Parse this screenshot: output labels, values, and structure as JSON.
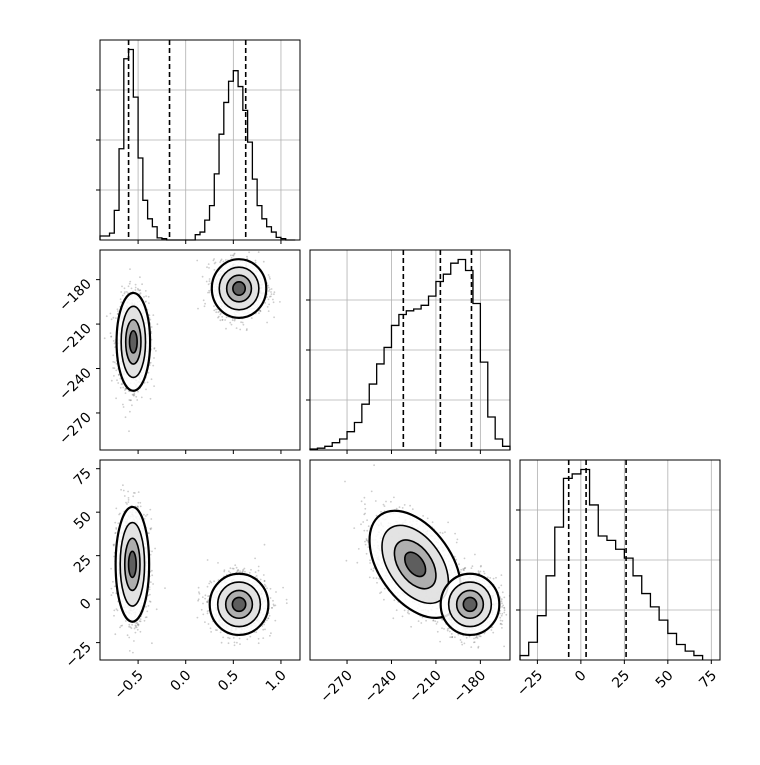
{
  "chart_data": {
    "type": "corner",
    "title": "",
    "parameters": [
      "",
      "",
      ""
    ],
    "colors": {
      "line": "#000000",
      "grid": "#b0b0b0",
      "scatter": "#6e6e6e"
    },
    "grid": true,
    "quantiles": [
      [
        -0.6,
        -0.17,
        0.63
      ],
      [
        -232,
        -207,
        -186
      ],
      [
        -7,
        3,
        26
      ]
    ],
    "histograms": [
      {
        "range": [
          -0.9,
          1.2
        ],
        "ticks": [
          -0.5,
          0.0,
          0.5,
          1.0
        ],
        "tick_labels": [
          "−0.5",
          "0.0",
          "0.5",
          "1.0"
        ],
        "edges": [
          -0.9,
          -0.8,
          -0.75,
          -0.7,
          -0.65,
          -0.6,
          -0.55,
          -0.5,
          -0.45,
          -0.4,
          -0.35,
          -0.3,
          -0.25,
          -0.2,
          -0.15,
          -0.1,
          -0.05,
          0.0,
          0.05,
          0.1,
          0.15,
          0.2,
          0.25,
          0.3,
          0.35,
          0.4,
          0.45,
          0.5,
          0.55,
          0.6,
          0.65,
          0.7,
          0.75,
          0.8,
          0.85,
          0.9,
          0.95,
          1.0,
          1.05,
          1.1,
          1.15
        ],
        "counts": [
          1.5,
          2.6,
          11.2,
          34.5,
          68.5,
          72.0,
          54.0,
          31.0,
          15.0,
          8.0,
          5.0,
          0.8,
          0.5,
          0.0,
          0.0,
          0.0,
          0.0,
          0.0,
          0.0,
          2.0,
          3.0,
          7.5,
          13.0,
          25.0,
          40.0,
          52.0,
          60.0,
          64.0,
          58.0,
          49.0,
          37.0,
          23.0,
          13.0,
          8.0,
          5.0,
          3.0,
          1.0,
          0.5,
          0.0,
          0.0
        ]
      },
      {
        "range": [
          -295,
          -160
        ],
        "ticks": [
          -270,
          -240,
          -210,
          -180
        ],
        "tick_labels": [
          "−270",
          "−240",
          "−210",
          "−180"
        ],
        "edges": [
          -295,
          -290,
          -285,
          -280,
          -275,
          -270,
          -265,
          -260,
          -255,
          -250,
          -245,
          -240,
          -235,
          -230,
          -225,
          -220,
          -215,
          -210,
          -205,
          -200,
          -195,
          -190,
          -185,
          -180,
          -175,
          -170,
          -165,
          -160
        ],
        "counts": [
          0.5,
          1.0,
          2.0,
          4.0,
          6.0,
          10.0,
          15.0,
          25.0,
          36.0,
          47.0,
          56.0,
          68.0,
          74.0,
          76.0,
          77.0,
          79.0,
          84.0,
          92.0,
          96.0,
          102.0,
          104.0,
          98.0,
          80.0,
          48.0,
          18.0,
          6.0,
          2.0
        ]
      },
      {
        "range": [
          -35,
          80
        ],
        "ticks": [
          -25,
          0,
          25,
          50,
          75
        ],
        "tick_labels": [
          "−25",
          "0",
          "25",
          "50",
          "75"
        ],
        "edges": [
          -35,
          -30,
          -25,
          -20,
          -15,
          -10,
          -5,
          0,
          5,
          10,
          15,
          20,
          25,
          30,
          35,
          40,
          45,
          50,
          55,
          60,
          65,
          70
        ],
        "counts": [
          1.0,
          4.0,
          10.0,
          19.0,
          30.0,
          41.0,
          42.0,
          43.0,
          35.0,
          28.0,
          27.0,
          25.0,
          23.0,
          19.0,
          15.0,
          12.0,
          9.0,
          6.0,
          3.5,
          2.0,
          1.0
        ]
      }
    ],
    "panels_2d": [
      {
        "row": 1,
        "col": 0,
        "x_range": [
          -0.9,
          1.2
        ],
        "y_range": [
          -295,
          -160
        ],
        "y_ticks": [
          -270,
          -240,
          -210,
          -180
        ],
        "y_tick_labels": [
          "−270",
          "−240",
          "−210",
          "−180"
        ],
        "modes": [
          {
            "cx": -0.55,
            "cy": -222,
            "sx": 0.08,
            "sy": 15,
            "rho": 0.0
          },
          {
            "cx": 0.56,
            "cy": -186,
            "sx": 0.13,
            "sy": 9,
            "rho": 0.0
          }
        ]
      },
      {
        "row": 2,
        "col": 0,
        "x_range": [
          -0.9,
          1.2
        ],
        "y_range": [
          -35,
          80
        ],
        "y_ticks": [
          -25,
          0,
          25,
          50,
          75
        ],
        "y_tick_labels": [
          "−25",
          "0",
          "25",
          "50",
          "75"
        ],
        "modes": [
          {
            "cx": -0.56,
            "cy": 20,
            "sx": 0.08,
            "sy": 15,
            "rho": 0.0
          },
          {
            "cx": 0.56,
            "cy": -3,
            "sx": 0.14,
            "sy": 8,
            "rho": 0.0
          }
        ]
      },
      {
        "row": 2,
        "col": 1,
        "x_range": [
          -295,
          -160
        ],
        "y_range": [
          -35,
          80
        ],
        "modes": [
          {
            "cx": -224,
            "cy": 20,
            "sx": 14,
            "sy": 14,
            "rho": -0.45
          },
          {
            "cx": -187,
            "cy": -3,
            "sx": 9,
            "sy": 8,
            "rho": 0.0
          }
        ]
      }
    ]
  }
}
